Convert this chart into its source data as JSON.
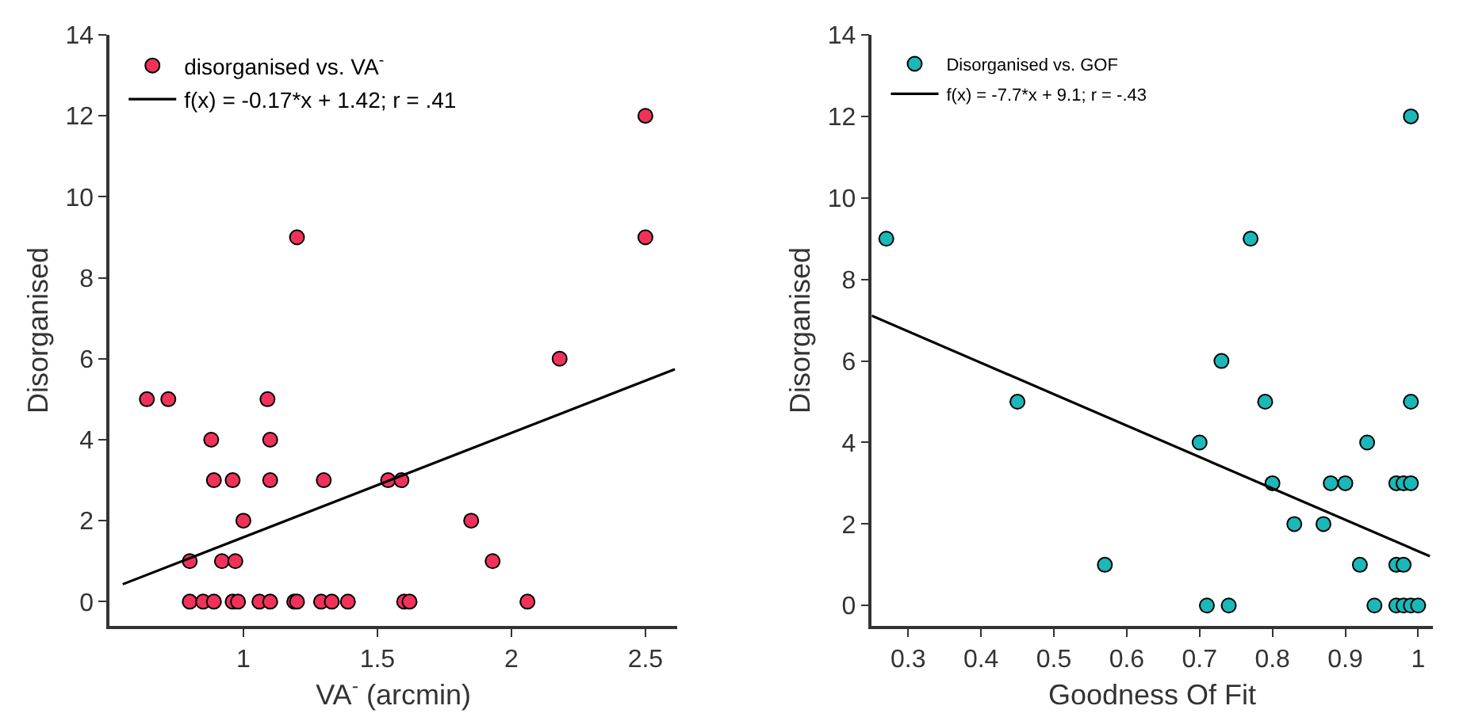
{
  "chart_data": [
    {
      "type": "scatter",
      "xlabel": "VA$^{-}$ (arcmin)",
      "ylabel": "Disorganised",
      "xlim": [
        0.5,
        2.62
      ],
      "ylim": [
        -0.6,
        14
      ],
      "xticks": [
        1,
        1.5,
        2,
        2.5
      ],
      "yticks": [
        0,
        2,
        4,
        6,
        8,
        10,
        12,
        14
      ],
      "legend": "top left",
      "series": [
        {
          "name": "disorganised vs. VA$^{-}$",
          "marker": "circle",
          "color": "#f0325a",
          "x": [
            0.64,
            0.72,
            1.09,
            0.88,
            1.1,
            0.89,
            0.96,
            1.1,
            1.3,
            1.54,
            1.59,
            1.0,
            1.85,
            0.8,
            0.92,
            0.97,
            1.93,
            0.8,
            0.85,
            0.89,
            0.96,
            0.98,
            1.06,
            1.1,
            1.19,
            1.2,
            1.29,
            1.33,
            1.39,
            1.6,
            1.62,
            2.06,
            1.2,
            2.18,
            2.5,
            2.5
          ],
          "values": [
            5,
            5,
            5,
            4,
            4,
            3,
            3,
            3,
            3,
            3,
            3,
            2,
            2,
            1,
            1,
            1,
            1,
            0,
            0,
            0,
            0,
            0,
            0,
            0,
            0,
            0,
            0,
            0,
            0,
            0,
            0,
            0,
            9,
            6,
            12,
            9
          ]
        },
        {
          "type": "line",
          "name": "f(x) = -0.17*x + 1.42; r = .41",
          "color": "#000000",
          "x": [
            0.55,
            2.61
          ],
          "values": [
            0.43,
            5.74
          ]
        }
      ]
    },
    {
      "type": "scatter",
      "xlabel": "Goodness Of Fit",
      "ylabel": "Disorganised",
      "xlim": [
        0.25,
        1.02
      ],
      "ylim": [
        -0.5,
        14
      ],
      "xticks": [
        0.3,
        0.4,
        0.5,
        0.6,
        0.7,
        0.8,
        0.9,
        1
      ],
      "yticks": [
        0,
        2,
        4,
        6,
        8,
        10,
        12,
        14
      ],
      "legend": "top left",
      "series": [
        {
          "name": "Disorganised vs. GOF",
          "marker": "circle",
          "color": "#1ab8b8",
          "x": [
            0.27,
            0.77,
            0.99,
            0.73,
            0.45,
            0.79,
            0.99,
            0.7,
            0.93,
            0.8,
            0.88,
            0.9,
            0.97,
            0.98,
            0.99,
            0.83,
            0.87,
            0.57,
            0.92,
            0.97,
            0.98,
            0.71,
            0.74,
            0.94,
            0.97,
            0.98,
            0.99,
            1.0
          ],
          "values": [
            9,
            9,
            12,
            6,
            5,
            5,
            5,
            4,
            4,
            3,
            3,
            3,
            3,
            3,
            3,
            2,
            2,
            1,
            1,
            1,
            1,
            0,
            0,
            0,
            0,
            0,
            0,
            0
          ]
        },
        {
          "type": "line",
          "name": "f(x) = -7.7*x + 9.1; r = -.43",
          "color": "#000000",
          "x": [
            0.25,
            1.016
          ],
          "values": [
            7.11,
            1.21
          ]
        }
      ]
    }
  ]
}
